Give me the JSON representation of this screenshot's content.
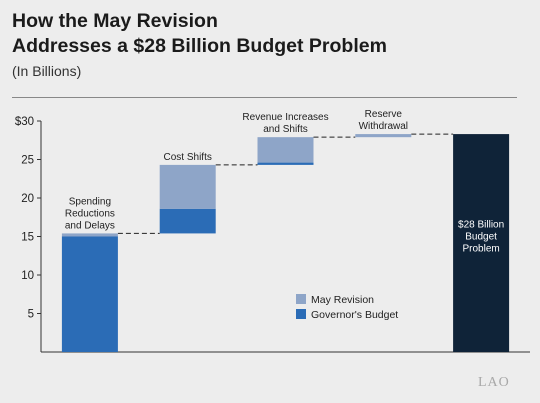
{
  "title_line1": "How the May Revision",
  "title_line2": "Addresses a $28 Billion Budget Problem",
  "subtitle": "(In Billions)",
  "logo": "LAO",
  "colors": {
    "may_revision": "#8ea5c8",
    "governors_budget": "#2b6cb6",
    "total": "#0f2338",
    "background": "#ededed"
  },
  "chart_data": {
    "type": "bar",
    "subtype": "waterfall",
    "ylim": [
      0,
      30
    ],
    "yticks": [
      5,
      10,
      15,
      20,
      25,
      30
    ],
    "ytick_labels": [
      "5",
      "10",
      "15",
      "20",
      "25",
      "$30"
    ],
    "grid": false,
    "legend_position": "center-right",
    "categories": [
      "Spending Reductions and Delays",
      "Cost Shifts",
      "Revenue Increases and Shifts",
      "Reserve Withdrawal",
      "$28 Billion Budget Problem"
    ],
    "category_label_lines": [
      [
        "Spending",
        "Reductions",
        "and Delays"
      ],
      [
        "Cost Shifts"
      ],
      [
        "Revenue Increases",
        "and Shifts"
      ],
      [
        "Reserve",
        "Withdrawal"
      ],
      [
        "$28 Billion",
        "Budget",
        "Problem"
      ]
    ],
    "series": [
      {
        "name": "Governor's Budget",
        "values": [
          15.0,
          3.2,
          0.3,
          0.0,
          null
        ]
      },
      {
        "name": "May Revision",
        "values": [
          0.4,
          5.7,
          3.3,
          0.4,
          null
        ]
      }
    ],
    "total": {
      "value": 28.3
    }
  }
}
